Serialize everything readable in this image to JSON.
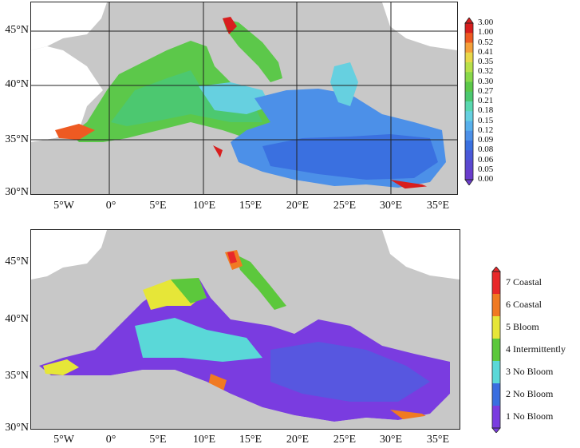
{
  "top_panel": {
    "y_ticks": [
      "45°N",
      "40°N",
      "35°N",
      "30°N"
    ],
    "x_ticks": [
      "5°W",
      "0°",
      "5°E",
      "10°E",
      "15°E",
      "20°E",
      "25°E",
      "30°E",
      "35°E"
    ],
    "colorbar": {
      "labels": [
        "3.00",
        "1.00",
        "0.52",
        "0.41",
        "0.35",
        "0.32",
        "0.30",
        "0.27",
        "0.21",
        "0.18",
        "0.15",
        "0.12",
        "0.09",
        "0.08",
        "0.06",
        "0.05",
        "0.00"
      ],
      "colors": [
        "#d81e1e",
        "#ee5a22",
        "#f4a03a",
        "#e8d84a",
        "#b8e04a",
        "#88d84a",
        "#5cc84a",
        "#4cc870",
        "#5ad8b0",
        "#66d0e0",
        "#58b0ec",
        "#4c90e8",
        "#3a70e0",
        "#4a58d8",
        "#5a48d0",
        "#6a3ccc"
      ]
    }
  },
  "bottom_panel": {
    "y_ticks": [
      "45°N",
      "40°N",
      "35°N",
      "30°N"
    ],
    "x_ticks": [
      "5°W",
      "0°",
      "5°E",
      "10°E",
      "15°E",
      "20°E",
      "25°E",
      "30°E",
      "35°E"
    ],
    "legend": [
      {
        "label": "7 Coastal",
        "color": "#e8282a"
      },
      {
        "label": "6 Coastal",
        "color": "#f07a22"
      },
      {
        "label": "5 Bloom",
        "color": "#e6e638"
      },
      {
        "label": "4 Intermittently",
        "color": "#5cc83c"
      },
      {
        "label": "3 No Bloom",
        "color": "#5ad8d8"
      },
      {
        "label": "2 No Bloom",
        "color": "#3a6ee0"
      },
      {
        "label": "1 No Bloom",
        "color": "#7a3ce0"
      }
    ]
  },
  "colors": {
    "land": "#ffffff",
    "background": "#c8c8c8",
    "grid": "#222222"
  }
}
